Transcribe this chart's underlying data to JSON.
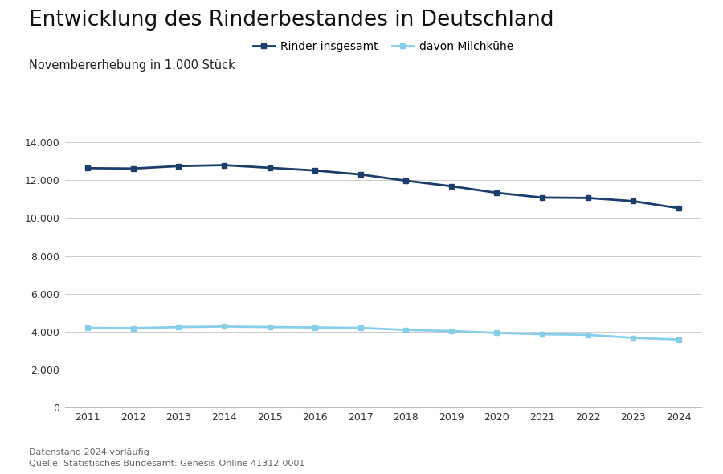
{
  "title": "Entwicklung des Rinderbestandes in Deutschland",
  "subtitle": "Novembererhebung in 1.000 Stück",
  "years": [
    2011,
    2012,
    2013,
    2014,
    2015,
    2016,
    2017,
    2018,
    2019,
    2020,
    2021,
    2022,
    2023,
    2024
  ],
  "rinder_insgesamt": [
    12630,
    12610,
    12740,
    12790,
    12650,
    12510,
    12300,
    11970,
    11680,
    11330,
    11080,
    11060,
    10890,
    10520
  ],
  "davon_milchkuehe": [
    4210,
    4190,
    4250,
    4280,
    4250,
    4230,
    4205,
    4100,
    4040,
    3940,
    3870,
    3840,
    3680,
    3590
  ],
  "color_rinder": "#1a3d6b",
  "color_milch": "#87ceeb",
  "ylim": [
    0,
    14000
  ],
  "yticks": [
    0,
    2000,
    4000,
    6000,
    8000,
    10000,
    12000,
    14000
  ],
  "legend_label_1": "Rinder insgesamt",
  "legend_label_2": "davon Milchkühe",
  "footnote_1": "Datenstand 2024 vorläufig",
  "footnote_2": "Quelle: Statistisches Bundesamt: Genesis-Online 41312-0001",
  "background_color": "#ffffff",
  "grid_color": "#cccccc"
}
